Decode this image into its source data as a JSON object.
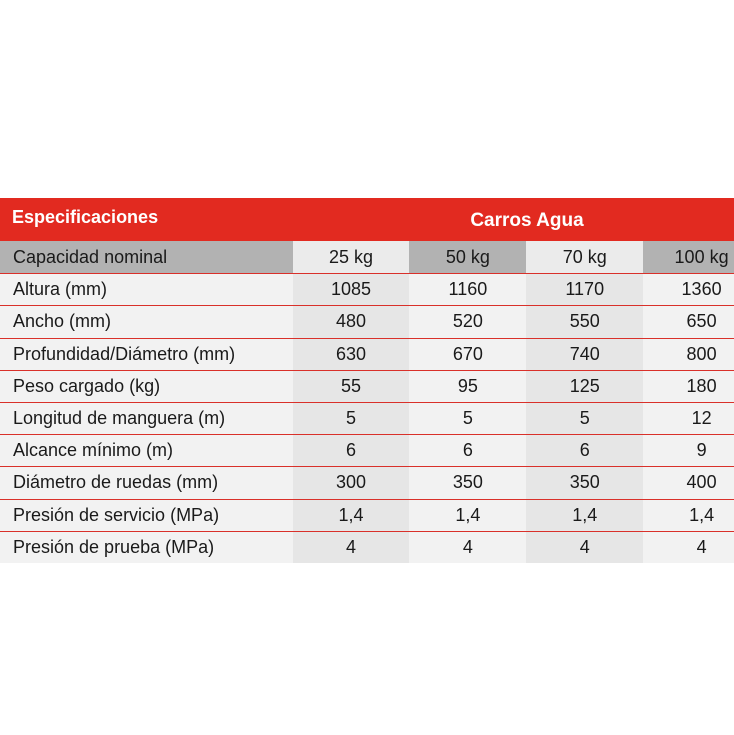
{
  "header": {
    "title": "Especificaciones",
    "group": "Carros Agua"
  },
  "capacity": {
    "label": "Capacidad nominal",
    "values": [
      "25 kg",
      "50 kg",
      "70 kg",
      "100 kg"
    ]
  },
  "rows": [
    {
      "label": "Altura (mm)",
      "values": [
        "1085",
        "1160",
        "1170",
        "1360"
      ]
    },
    {
      "label": "Ancho (mm)",
      "values": [
        "480",
        "520",
        "550",
        "650"
      ]
    },
    {
      "label": "Profundidad/Diámetro (mm)",
      "values": [
        "630",
        "670",
        "740",
        "800"
      ]
    },
    {
      "label": "Peso cargado (kg)",
      "values": [
        "55",
        "95",
        "125",
        "180"
      ]
    },
    {
      "label": "Longitud de manguera (m)",
      "values": [
        "5",
        "5",
        "5",
        "12"
      ]
    },
    {
      "label": "Alcance mínimo (m)",
      "values": [
        "6",
        "6",
        "6",
        "9"
      ]
    },
    {
      "label": "Diámetro de ruedas (mm)",
      "values": [
        "300",
        "350",
        "350",
        "400"
      ]
    },
    {
      "label": "Presión de servicio (MPa)",
      "values": [
        "1,4",
        "1,4",
        "1,4",
        "1,4"
      ]
    },
    {
      "label": "Presión de prueba (MPa)",
      "values": [
        "4",
        "4",
        "4",
        "4"
      ]
    }
  ]
}
